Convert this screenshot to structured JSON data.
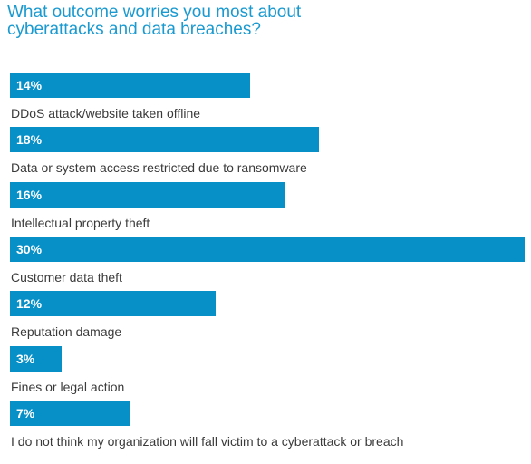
{
  "chart_data": {
    "type": "bar",
    "orientation": "horizontal",
    "title": "What outcome worries you most about cyberattacks and data breaches?",
    "title_lines": [
      "What outcome worries you most about",
      "cyberattacks and data breaches?"
    ],
    "categories": [
      "DDoS attack/website taken offline",
      "Data or system access restricted due to ransomware",
      "Intellectual property theft",
      "Customer data theft",
      "Reputation damage",
      "Fines or legal action",
      "I do not think my organization will fall victim to a cyberattack or breach"
    ],
    "values": [
      14,
      18,
      16,
      30,
      12,
      3,
      7
    ],
    "value_labels": [
      "14%",
      "18%",
      "16%",
      "30%",
      "12%",
      "3%",
      "7%"
    ],
    "xlim": [
      0,
      30
    ],
    "bar_color": "#0790c8",
    "title_color": "#1a9ad0",
    "grid": false
  }
}
